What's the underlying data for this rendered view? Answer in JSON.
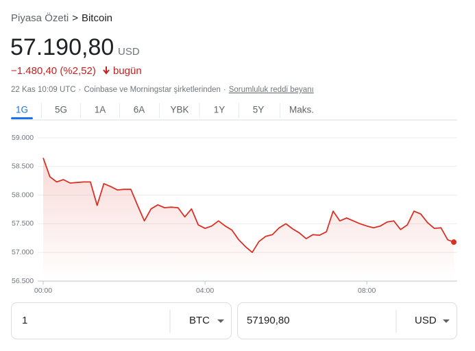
{
  "breadcrumb": {
    "parent": "Piyasa Özeti",
    "separator": ">",
    "current": "Bitcoin"
  },
  "quote": {
    "price": "57.190,80",
    "currency": "USD",
    "change": "−1.480,40 (%2,52)",
    "period": "bugün"
  },
  "info": {
    "time": "22 Kas 10:09 UTC",
    "source": "Coinbase ve Morningstar şirketlerinden",
    "disclaimer": "Sorumluluk reddi beyanı"
  },
  "tabs": [
    "1G",
    "5G",
    "1A",
    "6A",
    "YBK",
    "1Y",
    "5Y",
    "Maks."
  ],
  "active_tab": "1G",
  "chart_data": {
    "type": "line",
    "color": "#d93025",
    "x": [
      0,
      10,
      20,
      30,
      40,
      50,
      60,
      70,
      80,
      90,
      100,
      110,
      120,
      130,
      140,
      150,
      160,
      170,
      180,
      190,
      200,
      210,
      220,
      230,
      240,
      250,
      260,
      270,
      280,
      290,
      300,
      310,
      320,
      330,
      340,
      350,
      360,
      370,
      380,
      390,
      400,
      410,
      420,
      430,
      440,
      450,
      460,
      470,
      480,
      490,
      500,
      510,
      520,
      530,
      540,
      550,
      560,
      570,
      580,
      590,
      600,
      609
    ],
    "values": [
      58650,
      58320,
      58230,
      58270,
      58210,
      58220,
      58230,
      58230,
      57820,
      58200,
      58150,
      58090,
      58100,
      58100,
      57820,
      57550,
      57760,
      57830,
      57780,
      57790,
      57780,
      57620,
      57760,
      57480,
      57420,
      57460,
      57550,
      57460,
      57390,
      57220,
      57100,
      57000,
      57190,
      57280,
      57310,
      57430,
      57500,
      57410,
      57340,
      57240,
      57310,
      57300,
      57360,
      57720,
      57550,
      57600,
      57550,
      57500,
      57460,
      57430,
      57460,
      57530,
      57550,
      57400,
      57480,
      57720,
      57670,
      57520,
      57420,
      57430,
      57220,
      57180
    ],
    "xlim": [
      0,
      614
    ],
    "xticks": [
      {
        "value": 0,
        "label": "00:00"
      },
      {
        "value": 240,
        "label": "04:00"
      },
      {
        "value": 480,
        "label": "08:00"
      }
    ],
    "ylim": [
      56500,
      59000
    ],
    "yticks": [
      {
        "value": 56500,
        "label": "56.500"
      },
      {
        "value": 57000,
        "label": "57.000"
      },
      {
        "value": 57500,
        "label": "57.500"
      },
      {
        "value": 58000,
        "label": "58.000"
      },
      {
        "value": 58500,
        "label": "58.500"
      },
      {
        "value": 59000,
        "label": "59.000"
      }
    ],
    "grid": true
  },
  "converter": {
    "from_amount": "1",
    "from_unit": "BTC",
    "to_amount": "57190,80",
    "to_unit": "USD"
  }
}
